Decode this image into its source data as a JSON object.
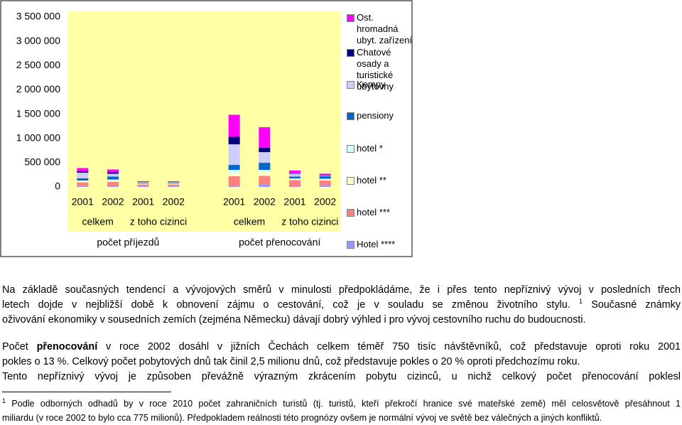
{
  "chart_data": {
    "type": "stacked_bar",
    "categories": [
      "2001",
      "2002",
      "2001",
      "2002",
      null,
      "2001",
      "2002",
      "2001",
      "2002"
    ],
    "category_groups": [
      "celkem",
      "z toho cizinci",
      "celkem",
      "z toho cizinci"
    ],
    "category_super_groups": [
      "počet příjezdů",
      "počet přenocování"
    ],
    "ylim": [
      0,
      3500000
    ],
    "yticks": [
      0,
      {
        "value": 500000,
        "label": "500 000"
      },
      {
        "value": 1000000,
        "label": "1 000 000"
      },
      {
        "value": 1500000,
        "label": "1 500 000"
      },
      {
        "value": 2000000,
        "label": "2 000 000"
      },
      {
        "value": 2500000,
        "label": "2 500 000"
      },
      {
        "value": 3000000,
        "label": "3 000 000"
      },
      {
        "value": 3500000,
        "label": "3 500 000"
      }
    ],
    "grid": false,
    "background": "#FFFFA6",
    "legend": "right",
    "series": [
      {
        "name": "Ost. hromadná ubyt. zařízení",
        "color": "#FF00FF",
        "values": [
          66000,
          59000,
          7000,
          7000,
          null,
          454000,
          425000,
          59000,
          29000
        ]
      },
      {
        "name": "Chatové osady a turistické ubytovny",
        "color": "#000080",
        "values": [
          29000,
          29000,
          7000,
          7000,
          null,
          154000,
          88000,
          7000,
          7000
        ]
      },
      {
        "name": "Kempy",
        "color": "#CCCCFF",
        "values": [
          117000,
          59000,
          15000,
          15000,
          null,
          425000,
          220000,
          59000,
          15000
        ]
      },
      {
        "name": "pensiony",
        "color": "#0066CC",
        "values": [
          44000,
          59000,
          15000,
          15000,
          null,
          102000,
          146000,
          37000,
          51000
        ]
      },
      {
        "name": "hotel *",
        "color": "#CCFFFF",
        "values": [
          7000,
          22000,
          7000,
          7000,
          null,
          51000,
          44000,
          15000,
          15000
        ]
      },
      {
        "name": "hotel **",
        "color": "#FFFFCC",
        "values": [
          30000,
          29000,
          15000,
          15000,
          null,
          80000,
          80000,
          22000,
          22000
        ]
      },
      {
        "name": "hotel ***",
        "color": "#FF8080",
        "values": [
          73000,
          73000,
          37000,
          37000,
          null,
          205000,
          183000,
          132000,
          95000
        ]
      },
      {
        "name": "Hotel ****",
        "color": "#9999FF",
        "values": [
          22000,
          29000,
          15000,
          15000,
          null,
          15000,
          44000,
          7000,
          37000
        ]
      }
    ]
  },
  "text": {
    "paragraphs": [
      [
        [
          {
            "text": "Na základě současných tendencí a vývojových směrů v minulosti předpokládáme, že i přes tento nepříznivý vývoj v posledních třech"
          }
        ],
        [
          {
            "text": "letech dojde v nejbližší době k obnovení zájmu o cestování, což je v souladu se změnou životního stylu. "
          },
          {
            "text": "1",
            "sup": true
          },
          {
            "text": " Současné známky"
          }
        ],
        [
          {
            "text": "oživování ekonomiky v sousedních zemích (zejména Německu) dávají dobrý výhled i pro vývoj cestovního ruchu do budoucnosti."
          }
        ]
      ],
      [
        [
          {
            "text": "Počet "
          },
          {
            "text": "přenocování",
            "bold": true
          },
          {
            "text": " v roce 2002 dosáhl v jižních Čechách celkem téměř 750 tisíc návštěvníků, což představuje oproti roku 2001"
          }
        ],
        [
          {
            "text": "pokles o 13 %. Celkový počet pobytových dnů tak činil 2,5 milionu dnů, což představuje pokles o 20 % oproti předchozímu roku."
          }
        ],
        [
          {
            "text": "Tento nepříznivý vývoj je způsoben převážně výrazným zkrácením pobytu cizinců, u nichž celkový počet přenocování poklesl"
          }
        ]
      ]
    ],
    "footnote": [
      [
        {
          "text": "1",
          "sup": true
        },
        {
          "text": " Podle odborných odhadů by v roce 2010 počet zahraničních turistů (tj. turistů, kteří překročí hranice své mateřské země) měl celosvětově přesáhnout 1"
        }
      ],
      [
        {
          "text": "miliardu (v roce 2002 to bylo cca 775 milionů). Předpokladem reálnosti této prognózy ovšem je normální vývoj ve světě bez válečných a jiných konfliktů."
        }
      ]
    ]
  }
}
